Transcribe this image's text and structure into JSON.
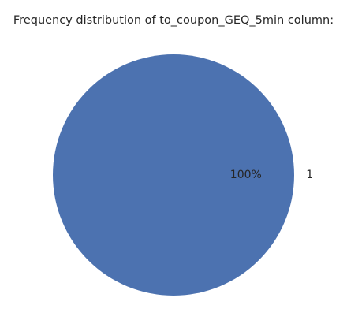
{
  "chart_data": {
    "type": "pie",
    "title": "Frequency distribution of to_coupon_GEQ_5min column:",
    "categories": [
      "1"
    ],
    "values": [
      1
    ],
    "percent_labels": [
      "100%"
    ],
    "colors": [
      "#4c72b0"
    ]
  }
}
